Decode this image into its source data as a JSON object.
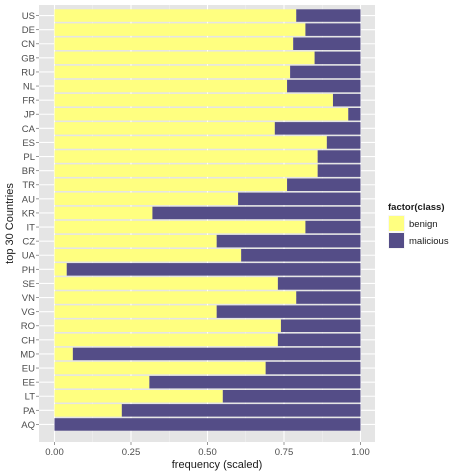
{
  "chart_data": {
    "type": "bar",
    "orientation": "horizontal",
    "stacked": true,
    "xlabel": "frequency (scaled)",
    "ylabel": "top 30 Countries",
    "xlim": [
      0,
      1
    ],
    "xticks": [
      "0.00",
      "0.25",
      "0.50",
      "0.75",
      "1.00"
    ],
    "xtick_values": [
      0,
      0.25,
      0.5,
      0.75,
      1.0
    ],
    "grid": true,
    "background": "#e5e5e5",
    "legend": {
      "title": "factor(class)",
      "placement": "right",
      "entries": [
        "benign",
        "malicious"
      ]
    },
    "categories": [
      "US",
      "DE",
      "CN",
      "GB",
      "RU",
      "NL",
      "FR",
      "JP",
      "CA",
      "ES",
      "PL",
      "BR",
      "TR",
      "AU",
      "KR",
      "IT",
      "CZ",
      "UA",
      "PH",
      "SE",
      "VN",
      "VG",
      "RO",
      "CH",
      "MD",
      "EU",
      "EE",
      "LT",
      "PA",
      "AQ"
    ],
    "series": [
      {
        "name": "benign",
        "color": "#ffff80",
        "values": [
          0.79,
          0.82,
          0.78,
          0.85,
          0.77,
          0.76,
          0.91,
          0.96,
          0.72,
          0.89,
          0.86,
          0.86,
          0.76,
          0.6,
          0.32,
          0.82,
          0.53,
          0.61,
          0.04,
          0.73,
          0.79,
          0.53,
          0.74,
          0.73,
          0.06,
          0.69,
          0.31,
          0.55,
          0.22,
          0.0
        ]
      },
      {
        "name": "malicious",
        "color": "#544d87",
        "values": [
          0.21,
          0.18,
          0.22,
          0.15,
          0.23,
          0.24,
          0.09,
          0.04,
          0.28,
          0.11,
          0.14,
          0.14,
          0.24,
          0.4,
          0.68,
          0.18,
          0.47,
          0.39,
          0.96,
          0.27,
          0.21,
          0.47,
          0.26,
          0.27,
          0.94,
          0.31,
          0.69,
          0.45,
          0.78,
          1.0
        ]
      }
    ]
  }
}
